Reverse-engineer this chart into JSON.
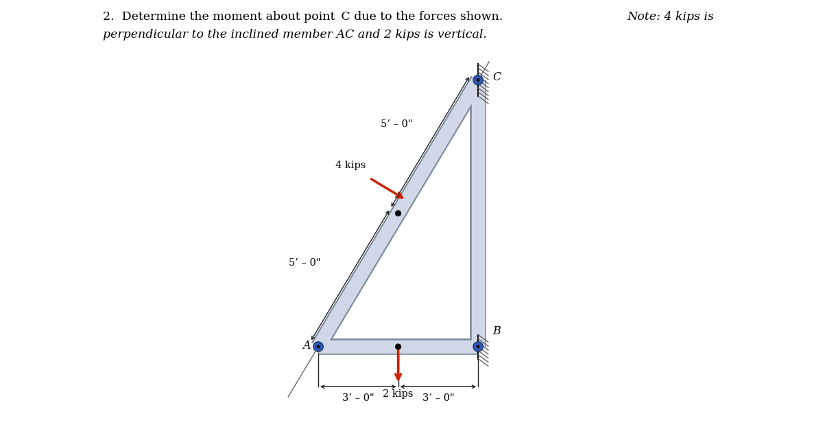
{
  "bg_color": "#ffffff",
  "fig_bg_color": "#ffffff",
  "A": [
    0,
    0
  ],
  "B": [
    6,
    0
  ],
  "C": [
    6,
    10
  ],
  "label_5ft_ac": "5’ – 0\"",
  "label_5ft_left": "5’ – 0\"",
  "label_3ft_left": "3’ – 0\"",
  "label_3ft_right": "3’ – 0\"",
  "label_4kips": "4 kips",
  "label_2kips": "2 kips",
  "label_A": "A",
  "label_B": "B",
  "label_C": "C",
  "member_color": "#d0d8e8",
  "member_edge_color": "#7a8a9a",
  "member_lw": 14,
  "force_color": "#cc2200",
  "force_lw": 2.0,
  "pin_dark": "#1a2a5a",
  "pin_light": "#3355aa",
  "pin_r": 0.16,
  "hatch_color": "#888888",
  "dim_color": "#222222",
  "dim_lw": 1.0,
  "xlim": [
    -3.0,
    10.0
  ],
  "ylim": [
    -3.5,
    13.0
  ]
}
